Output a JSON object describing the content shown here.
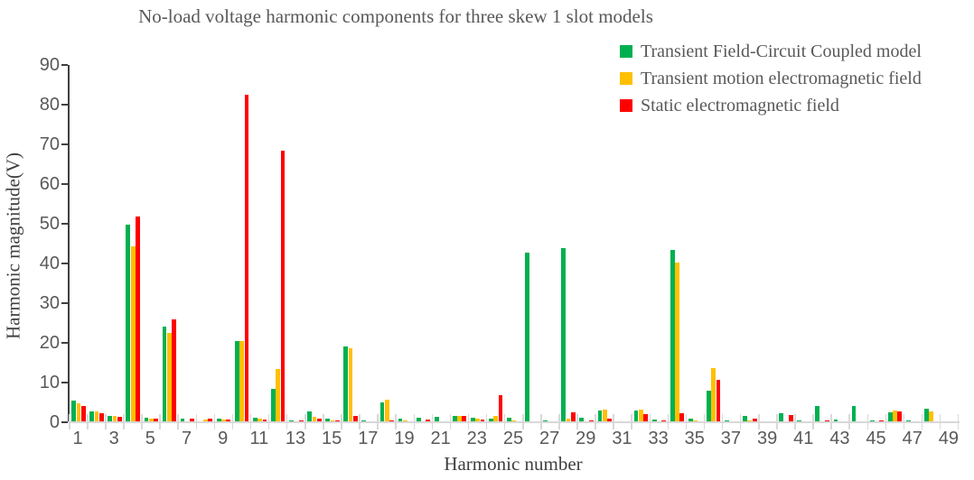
{
  "chart_data": {
    "type": "bar",
    "title": "No-load voltage harmonic components for three skew 1 slot models",
    "xlabel": "Harmonic number",
    "ylabel": "Harmonic magnitude(V)",
    "ylim": [
      0,
      90
    ],
    "yticks": [
      0,
      10,
      20,
      30,
      40,
      50,
      60,
      70,
      80,
      90
    ],
    "categories": [
      1,
      2,
      3,
      4,
      5,
      6,
      7,
      8,
      9,
      10,
      11,
      12,
      13,
      14,
      15,
      16,
      17,
      18,
      19,
      20,
      21,
      22,
      23,
      24,
      25,
      26,
      27,
      28,
      29,
      30,
      31,
      32,
      33,
      34,
      35,
      36,
      37,
      38,
      39,
      40,
      41,
      42,
      43,
      44,
      45,
      46,
      47,
      48,
      49
    ],
    "xtick_labels": [
      "1",
      "3",
      "5",
      "7",
      "9",
      "11",
      "13",
      "15",
      "17",
      "19",
      "21",
      "23",
      "25",
      "27",
      "29",
      "31",
      "33",
      "35",
      "37",
      "39",
      "41",
      "43",
      "45",
      "47",
      "49"
    ],
    "grid": false,
    "legend_position": "top-right",
    "series": [
      {
        "name": "Transient Field-Circuit Coupled model",
        "color": "#00B050",
        "values": [
          5.4,
          2.7,
          1.7,
          49.8,
          1.2,
          24.2,
          0.9,
          0.3,
          0.8,
          20.5,
          1.2,
          8.5,
          0.4,
          2.8,
          0.8,
          19.1,
          0.5,
          5.0,
          0.9,
          1.2,
          1.4,
          1.7,
          1.1,
          0.9,
          1.1,
          42.7,
          0.5,
          43.9,
          1.1,
          3.0,
          0.3,
          2.9,
          0.6,
          43.3,
          0.9,
          8.0,
          0.4,
          1.7,
          0.3,
          2.2,
          0.5,
          4.1,
          0.7,
          4.0,
          0.5,
          2.4,
          0.5,
          3.3,
          0.3
        ]
      },
      {
        "name": "Transient motion electromagnetic field",
        "color": "#FFC000",
        "values": [
          4.7,
          2.8,
          1.6,
          44.4,
          1.0,
          22.5,
          0.3,
          0.6,
          0.7,
          20.5,
          1.0,
          13.4,
          0.3,
          1.3,
          0.5,
          18.7,
          0.2,
          5.6,
          0.4,
          0.3,
          0.3,
          1.5,
          0.8,
          1.6,
          0.5,
          0.3,
          0.2,
          0.9,
          0.3,
          3.2,
          0.2,
          3.1,
          0.3,
          40.3,
          0.5,
          13.7,
          0.3,
          0.4,
          0.2,
          0.3,
          0.2,
          0.3,
          0.2,
          0.3,
          0.3,
          2.9,
          0.2,
          2.8,
          0.2
        ]
      },
      {
        "name": "Static electromagnetic field",
        "color": "#FF0000",
        "values": [
          4.2,
          2.2,
          1.4,
          51.8,
          0.9,
          26.0,
          0.8,
          0.9,
          0.6,
          82.5,
          0.7,
          68.3,
          0.4,
          1.0,
          0.5,
          1.5,
          0.3,
          0.4,
          0.3,
          0.6,
          0.3,
          1.5,
          0.6,
          6.8,
          0.3,
          0.3,
          0.3,
          2.6,
          0.5,
          0.8,
          0.3,
          2.0,
          0.4,
          2.2,
          0.3,
          10.7,
          0.3,
          0.8,
          0.2,
          1.8,
          0.3,
          0.4,
          0.3,
          0.3,
          0.4,
          2.7,
          0.3,
          0.3,
          0.2
        ]
      }
    ],
    "axis_colors": {
      "y_axis": "#404040",
      "x_axis": "#d9d9d9",
      "tick_label": "#595959"
    }
  }
}
